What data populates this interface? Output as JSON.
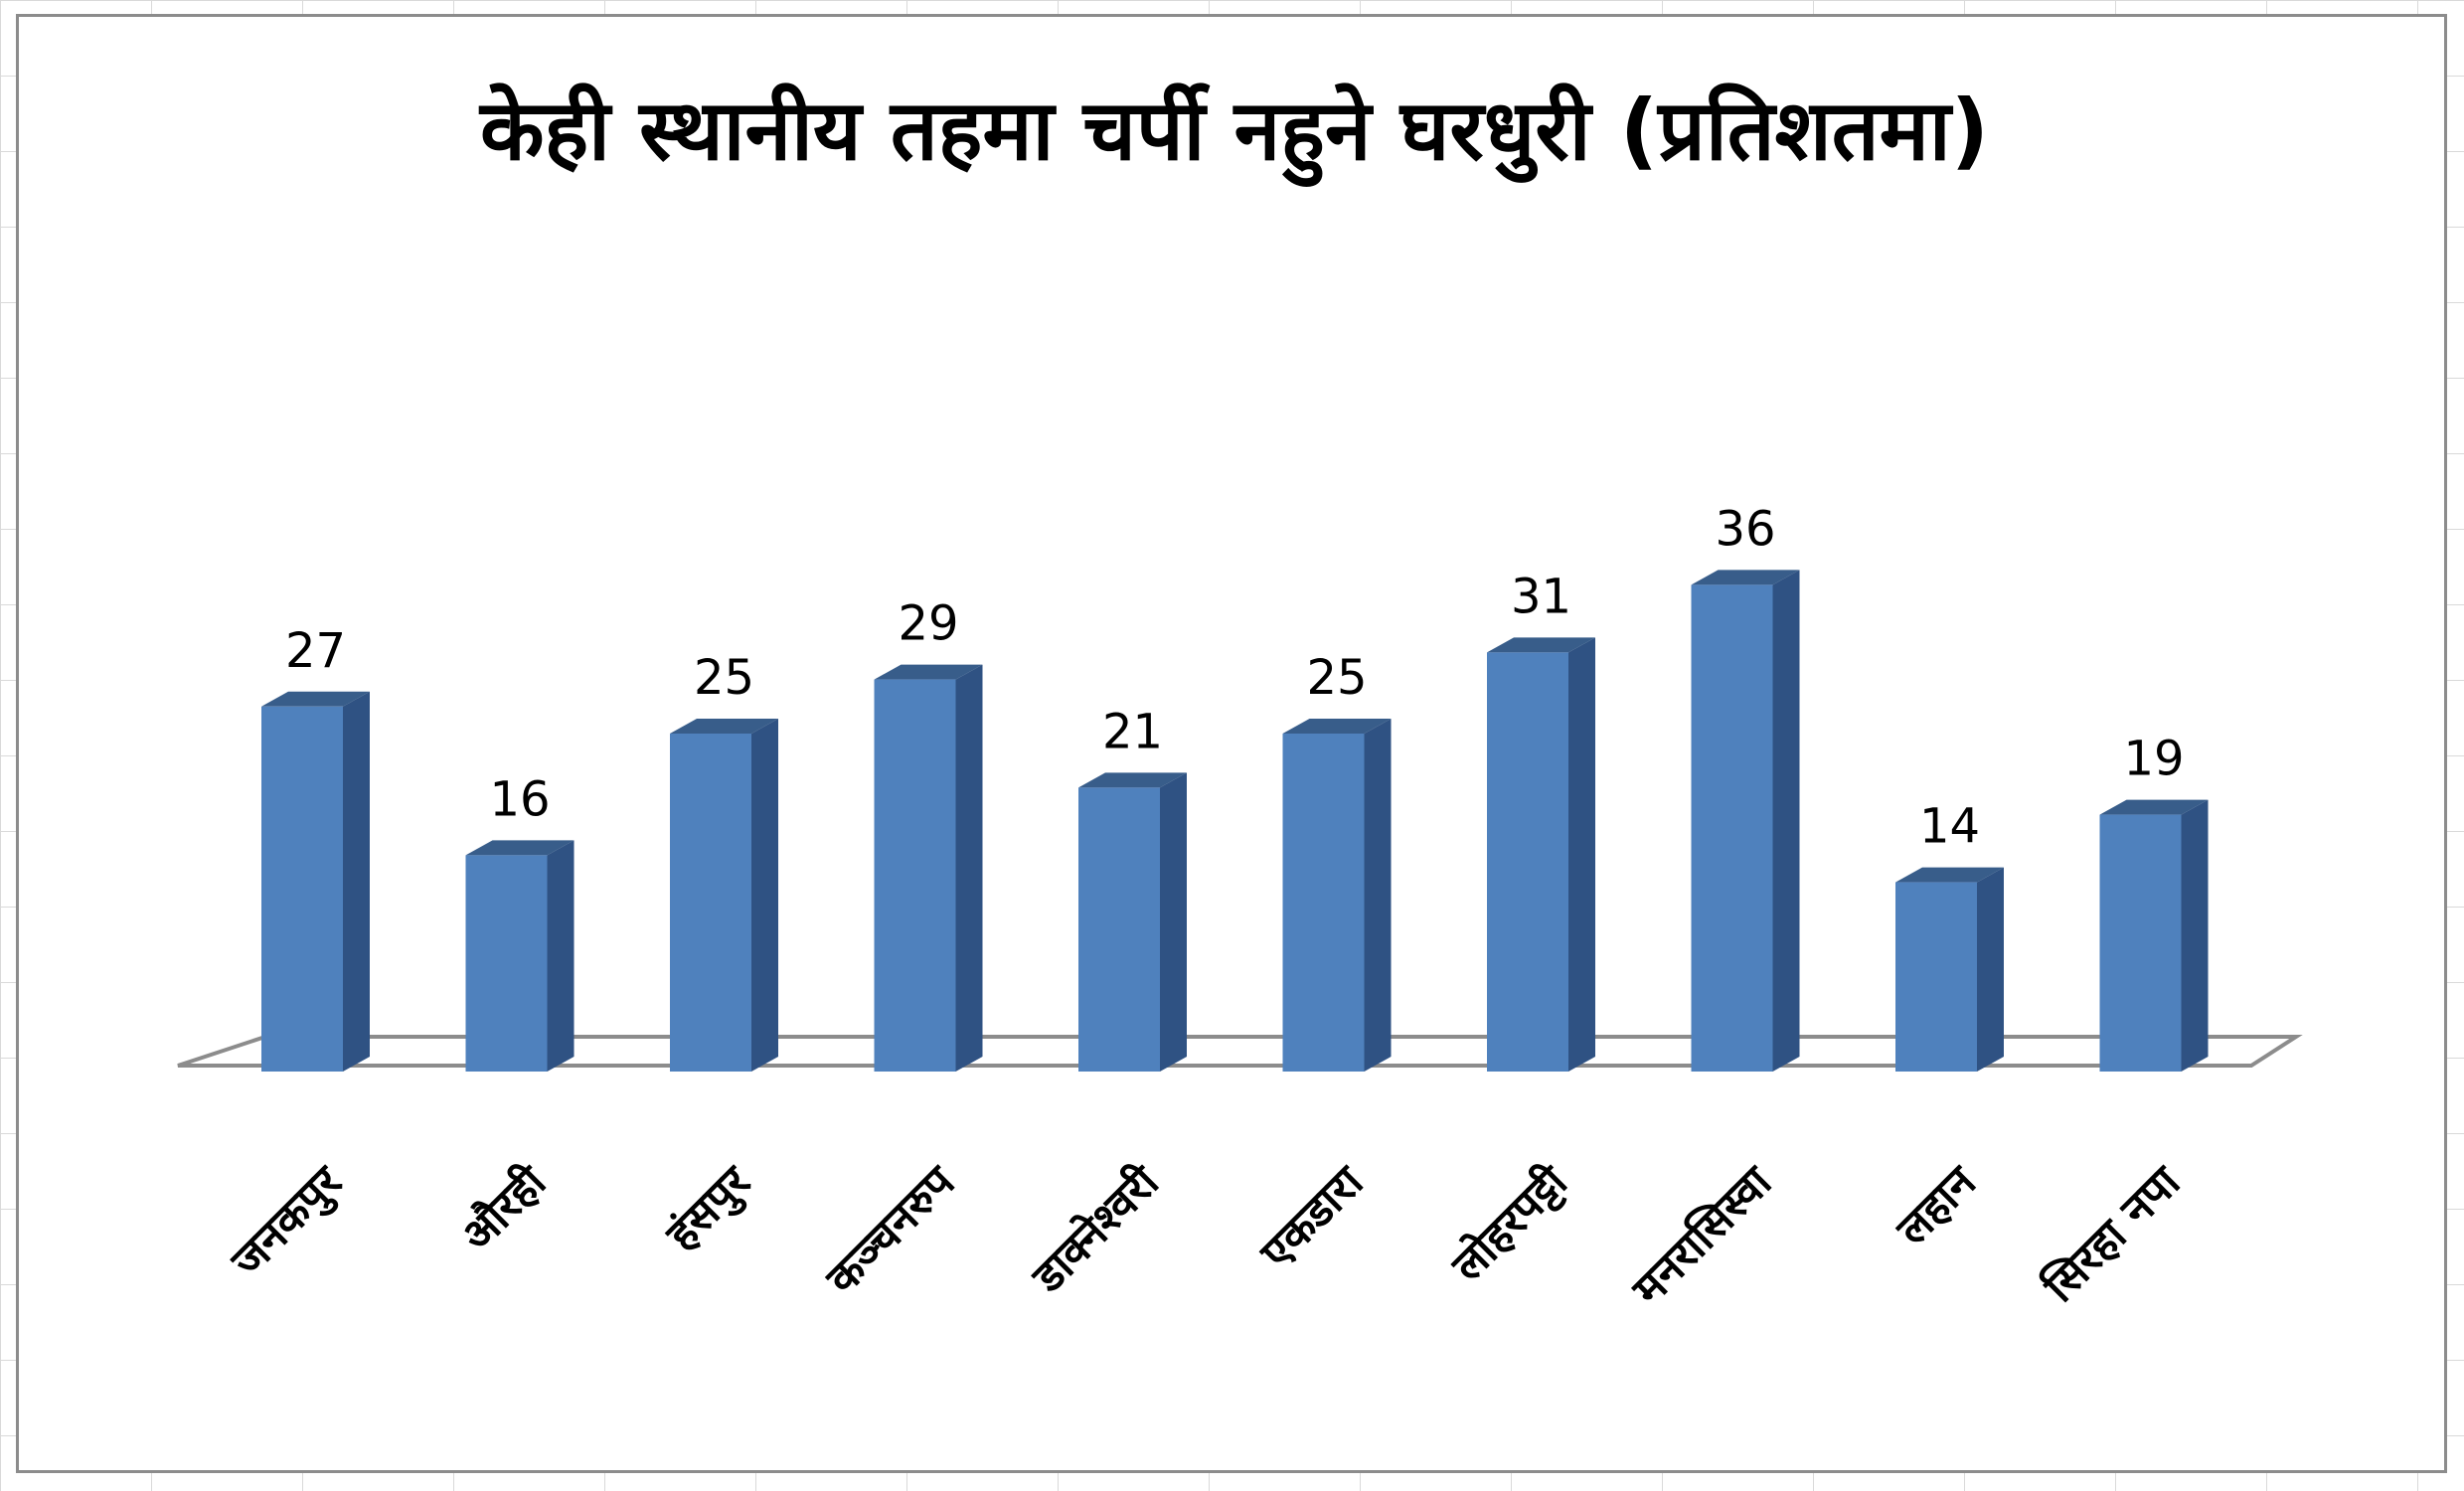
{
  "chart_data": {
    "type": "bar",
    "title": "केही स्थानीय तहमा चर्पी नहुने घरधुरी (प्रतिशतमा)",
    "categories": [
      "जनकपुर",
      "औरही",
      "हंसपुर",
      "कञ्चनरुप",
      "डाक्नेश्वरी",
      "एकडारा",
      "लोहरपट्टी",
      "मनरासिस्वा",
      "लहान",
      "सिरहा नपा"
    ],
    "values": [
      27,
      16,
      25,
      29,
      21,
      25,
      31,
      36,
      14,
      19
    ],
    "bar_color": "#4f81bd",
    "bar_side_color": "#2f5283",
    "bar_top_color": "#385d8a",
    "data_labels": true,
    "grid": false,
    "legend": "none",
    "three_d": true
  }
}
